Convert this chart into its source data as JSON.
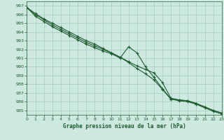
{
  "title": "Graphe pression niveau de la mer (hPa)",
  "bg_color": "#cce8df",
  "grid_color": "#aacfc5",
  "line_color": "#1e5c2e",
  "text_color": "#1e5c2e",
  "x_min": 0,
  "x_max": 23,
  "y_min": 984.5,
  "y_max": 997.5,
  "y_ticks": [
    985,
    986,
    987,
    988,
    989,
    990,
    991,
    992,
    993,
    994,
    995,
    996,
    997
  ],
  "series": [
    [
      996.8,
      995.8,
      995.2,
      994.6,
      994.1,
      993.6,
      993.1,
      992.6,
      992.2,
      991.8,
      991.5,
      991.0,
      992.3,
      991.6,
      990.0,
      988.8,
      987.5,
      986.3,
      986.1,
      986.0,
      985.7,
      985.3,
      984.9,
      984.6
    ],
    [
      996.8,
      996.0,
      995.4,
      994.8,
      994.3,
      993.8,
      993.3,
      992.8,
      992.4,
      992.0,
      991.6,
      991.1,
      990.6,
      990.1,
      989.7,
      989.3,
      988.2,
      986.4,
      986.2,
      986.1,
      985.8,
      985.4,
      985.0,
      984.7
    ],
    [
      996.8,
      996.1,
      995.5,
      995.0,
      994.5,
      994.0,
      993.5,
      993.0,
      992.6,
      992.1,
      991.6,
      991.1,
      990.5,
      989.8,
      989.2,
      988.5,
      987.4,
      986.3,
      986.2,
      986.1,
      985.8,
      985.4,
      985.0,
      984.7
    ]
  ]
}
